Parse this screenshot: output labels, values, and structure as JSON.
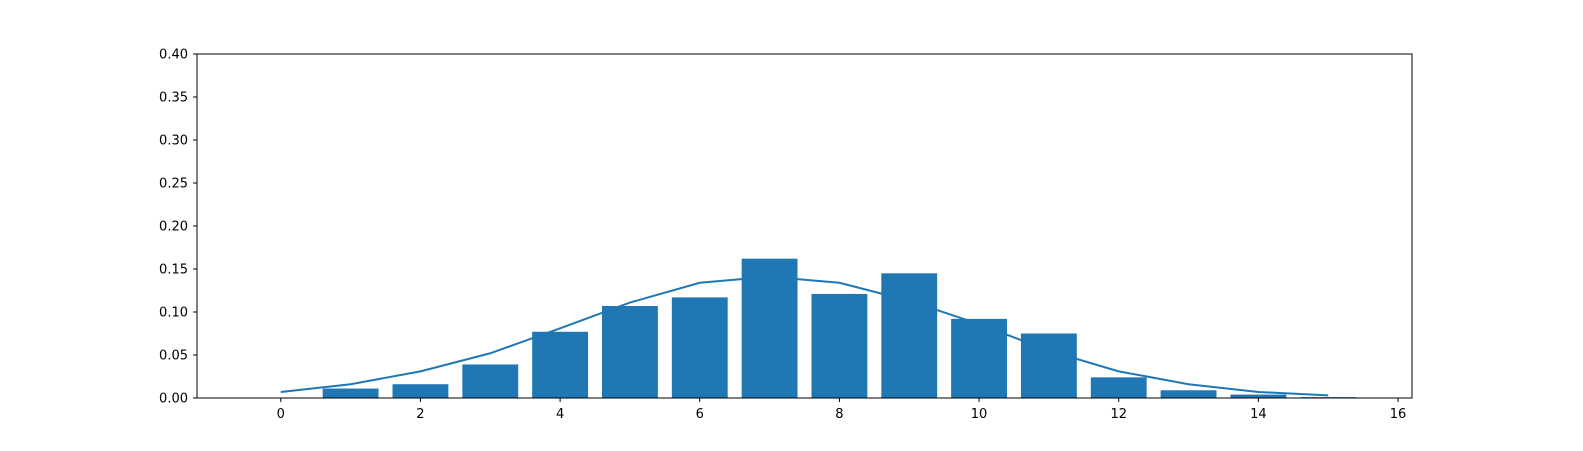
{
  "chart_data": {
    "type": "bar",
    "title": "",
    "xlabel": "",
    "ylabel": "",
    "xlim": [
      -1.2,
      16.2
    ],
    "ylim": [
      0,
      0.4
    ],
    "xticks": [
      0,
      2,
      4,
      6,
      8,
      10,
      12,
      14,
      16
    ],
    "xtick_labels": [
      "0",
      "2",
      "4",
      "6",
      "8",
      "10",
      "12",
      "14",
      "16"
    ],
    "yticks": [
      0.0,
      0.05,
      0.1,
      0.15,
      0.2,
      0.25,
      0.3,
      0.35,
      0.4
    ],
    "ytick_labels": [
      "0.00",
      "0.05",
      "0.10",
      "0.15",
      "0.20",
      "0.25",
      "0.30",
      "0.35",
      "0.40"
    ],
    "grid": false,
    "color": "#1f77b4",
    "series": [
      {
        "kind": "bar",
        "x": [
          0,
          1,
          2,
          3,
          4,
          5,
          6,
          7,
          8,
          9,
          10,
          11,
          12,
          13,
          14,
          15
        ],
        "values": [
          0.0,
          0.011,
          0.016,
          0.039,
          0.077,
          0.107,
          0.117,
          0.162,
          0.121,
          0.145,
          0.092,
          0.075,
          0.024,
          0.009,
          0.004,
          0.001
        ]
      },
      {
        "kind": "line",
        "x": [
          0,
          1,
          2,
          3,
          4,
          5,
          6,
          7,
          8,
          9,
          10,
          11,
          12,
          13,
          14,
          15
        ],
        "values": [
          0.007,
          0.016,
          0.031,
          0.052,
          0.081,
          0.111,
          0.134,
          0.141,
          0.134,
          0.113,
          0.086,
          0.055,
          0.031,
          0.016,
          0.007,
          0.003
        ]
      }
    ]
  }
}
